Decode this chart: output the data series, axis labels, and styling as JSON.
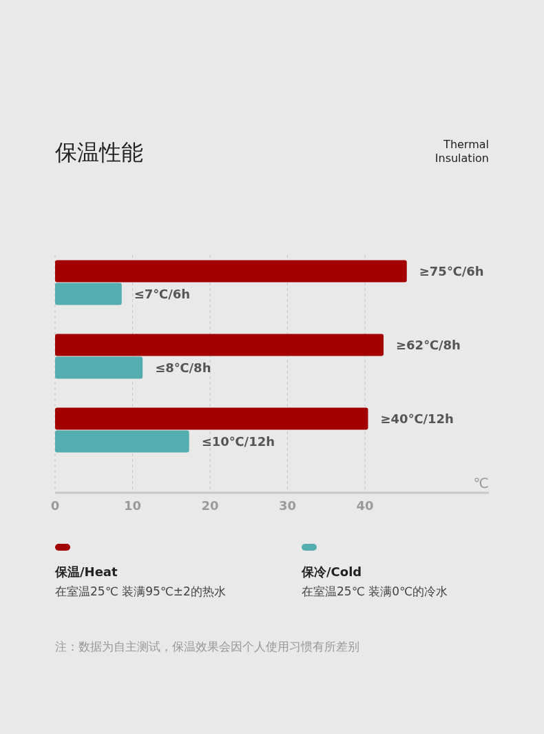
{
  "chart_data": {
    "type": "bar",
    "orientation": "horizontal",
    "title": "保温性能",
    "subtitle": "Thermal Insulation",
    "xlabel": "℃",
    "categories": [
      null,
      null,
      null
    ],
    "series": [
      {
        "name": "保温/Heat",
        "color": "#a30000",
        "values": [
          45.4,
          42.4,
          40.4
        ],
        "value_labels": [
          "≥75℃/6h",
          "≥62℃/8h",
          "≥40℃/12h"
        ]
      },
      {
        "name": "保冷/Cold",
        "color": "#54adae",
        "values": [
          8.6,
          11.3,
          17.3
        ],
        "value_labels": [
          "≤7℃/6h",
          "≤8℃/8h",
          "≤10℃/12h"
        ]
      }
    ],
    "xlim": [
      0,
      56
    ],
    "xticks": [
      0,
      10,
      20,
      30,
      40
    ],
    "grid": "x",
    "legend": "bottom",
    "annotations": [
      "在室温25℃ 装满95℃±2的热水",
      "在室温25℃ 装满0℃的冷水",
      "注：数据为自主测试，保温效果会因个人使用习惯有所差别"
    ]
  }
}
